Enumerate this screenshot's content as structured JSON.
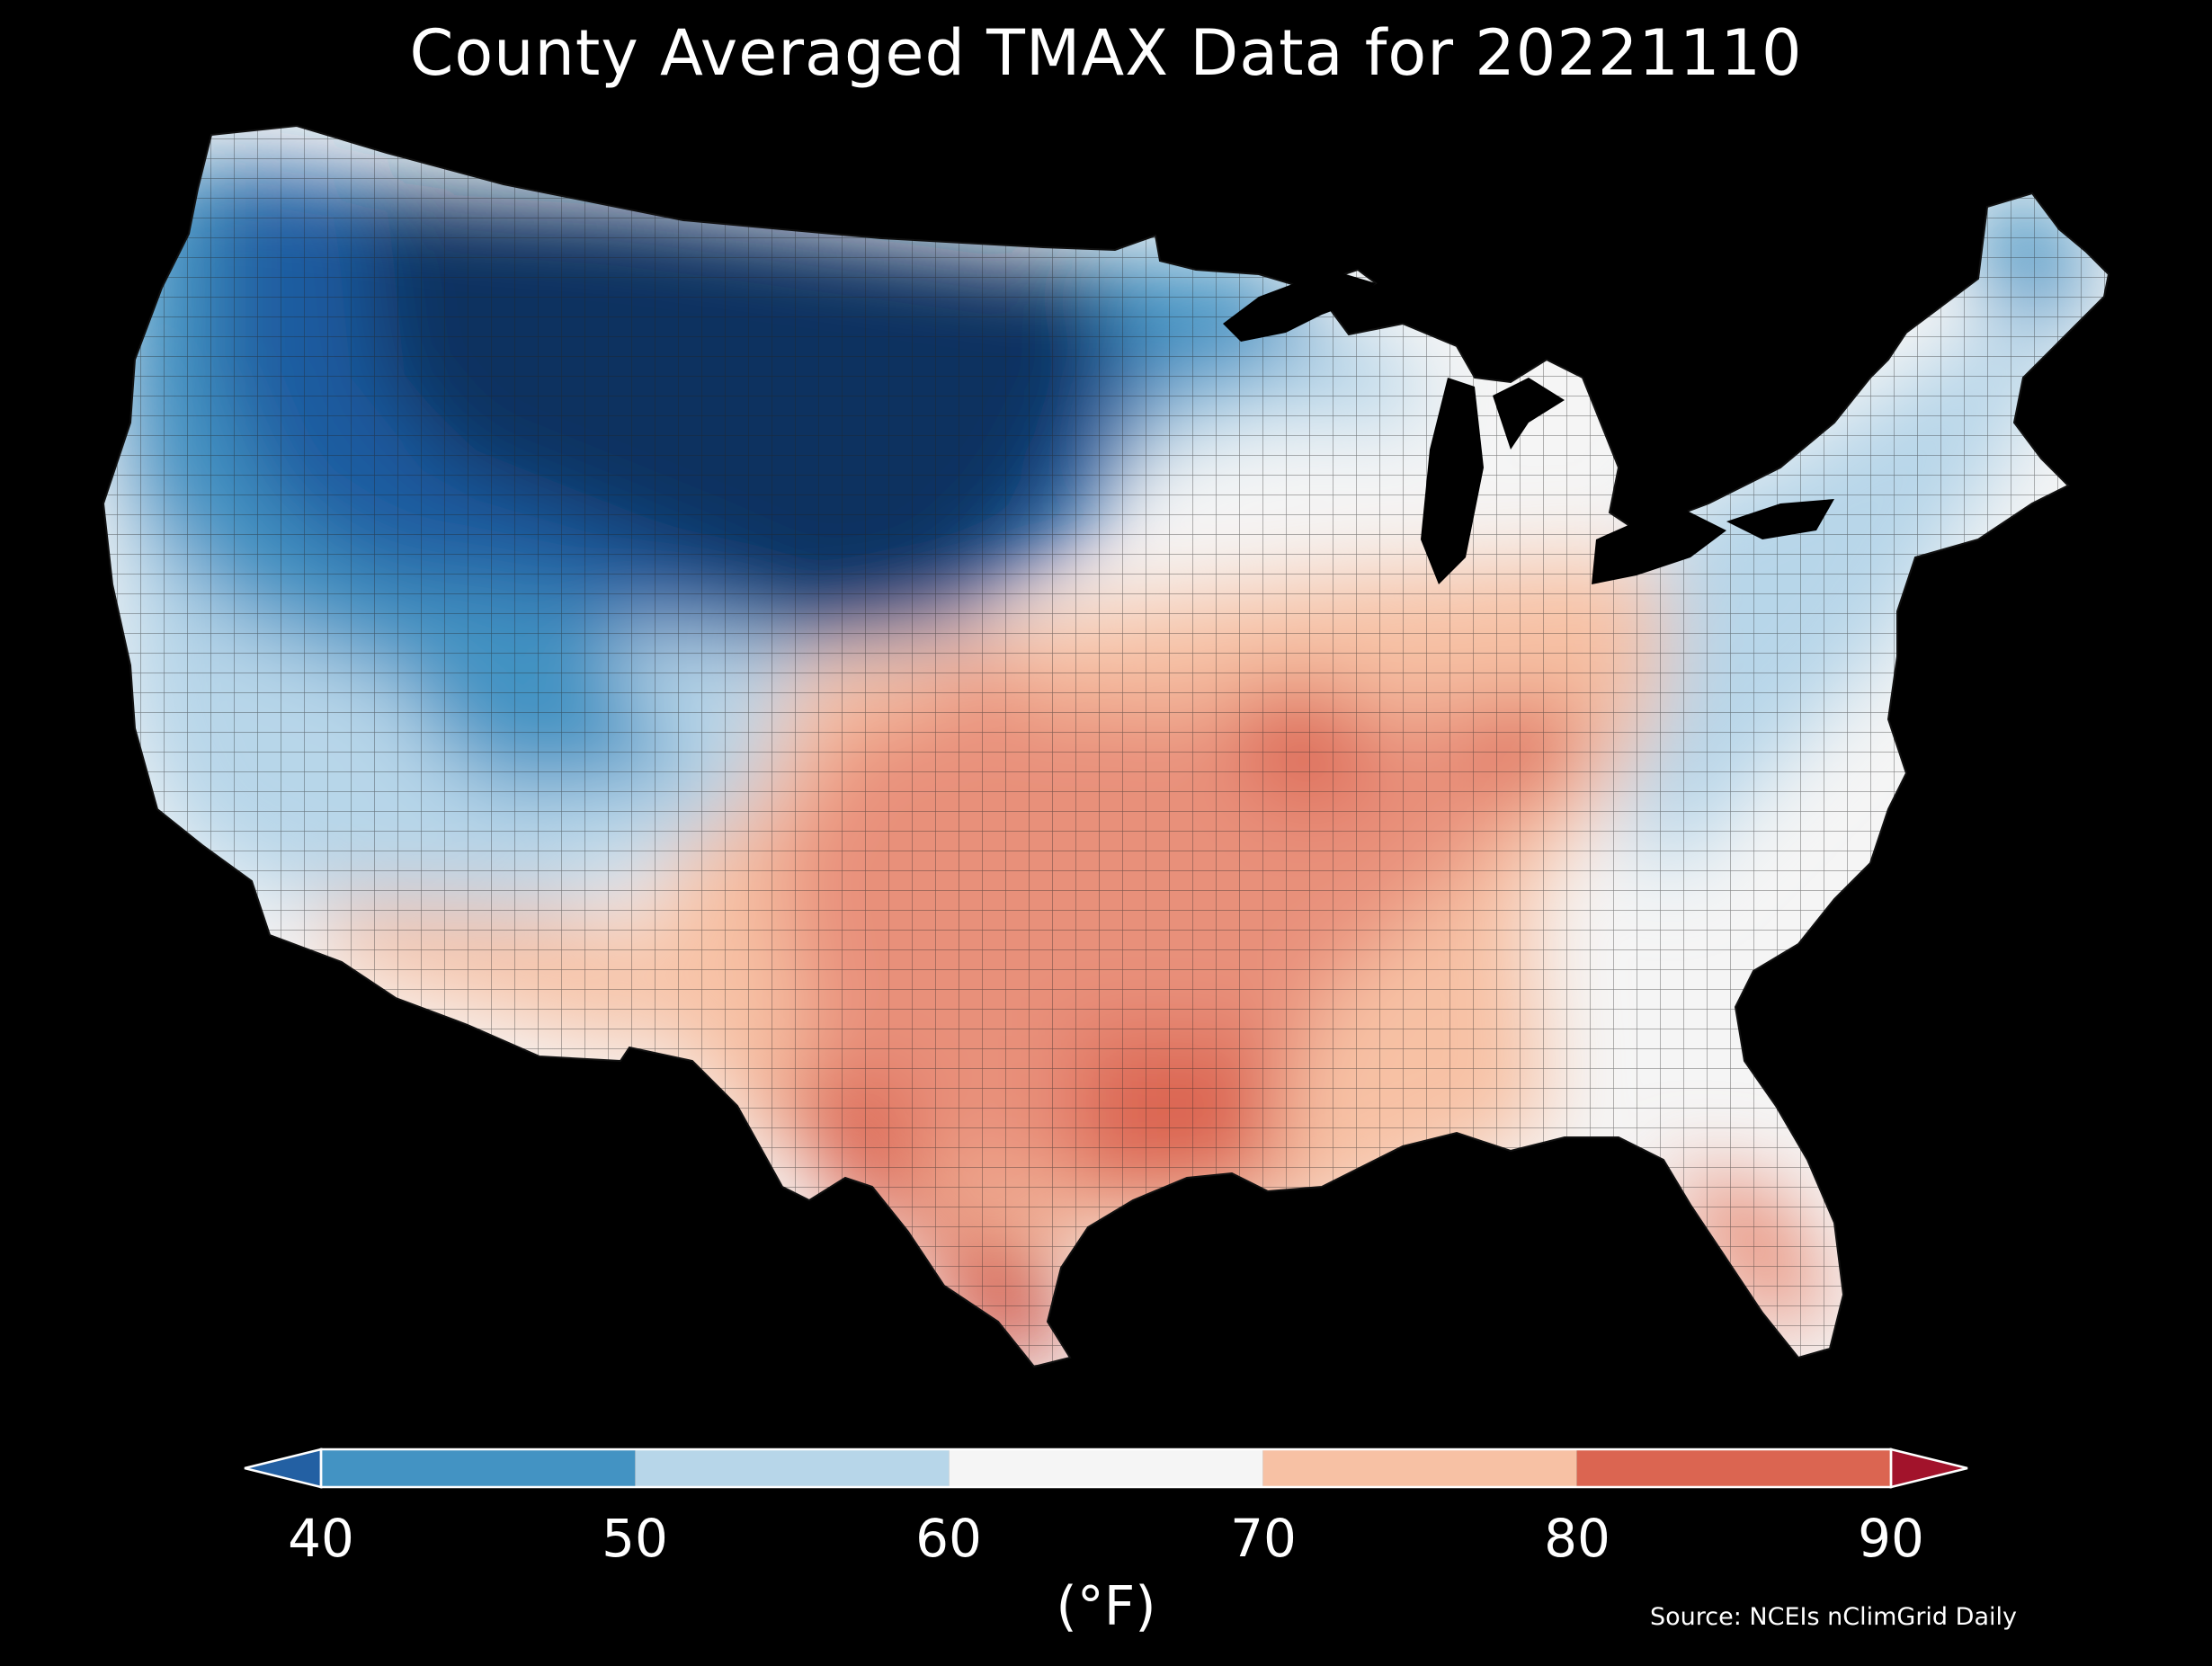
{
  "title": "County Averaged TMAX Data for 20221110",
  "colorbar": {
    "unit": "(°F)",
    "ticks": [
      "40",
      "50",
      "60",
      "70",
      "80",
      "90"
    ],
    "bins": [
      {
        "from": 40,
        "to": 50,
        "color": "#4393c3"
      },
      {
        "from": 50,
        "to": 60,
        "color": "#b7d6e9"
      },
      {
        "from": 60,
        "to": 70,
        "color": "#f5f5f5"
      },
      {
        "from": 70,
        "to": 80,
        "color": "#f7c1a4"
      },
      {
        "from": 80,
        "to": 90,
        "color": "#db6551"
      }
    ],
    "under_color": "#2360a3",
    "over_color": "#a2132b"
  },
  "source": "Source: NCEIs nClimGrid Daily",
  "palette": {
    "very_cold": "#0a3060",
    "cold": "#1d5ba0",
    "cool": "#4393c3",
    "mild": "#b7d6e9",
    "neutral": "#f5f5f5",
    "warm": "#f7c1a4",
    "warmer": "#e8907a",
    "hot": "#db6551",
    "hottest": "#c64238",
    "background": "#000000"
  }
}
